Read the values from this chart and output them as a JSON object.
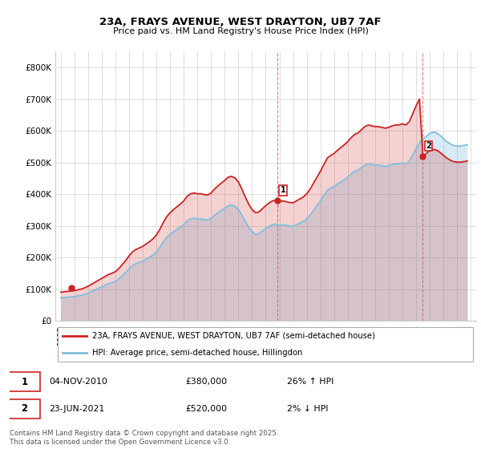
{
  "title": "23A, FRAYS AVENUE, WEST DRAYTON, UB7 7AF",
  "subtitle": "Price paid vs. HM Land Registry's House Price Index (HPI)",
  "legend_line1": "23A, FRAYS AVENUE, WEST DRAYTON, UB7 7AF (semi-detached house)",
  "legend_line2": "HPI: Average price, semi-detached house, Hillingdon",
  "footer": "Contains HM Land Registry data © Crown copyright and database right 2025.\nThis data is licensed under the Open Government Licence v3.0.",
  "annotation1_label": "1",
  "annotation1_date": "04-NOV-2010",
  "annotation1_price": "£380,000",
  "annotation1_hpi": "26% ↑ HPI",
  "annotation2_label": "2",
  "annotation2_date": "23-JUN-2021",
  "annotation2_price": "£520,000",
  "annotation2_hpi": "2% ↓ HPI",
  "hpi_color": "#7fbfdd",
  "price_color": "#cc2222",
  "vline_color": "#cc2222",
  "ylim": [
    0,
    850000
  ],
  "yticks": [
    0,
    100000,
    200000,
    300000,
    400000,
    500000,
    600000,
    700000,
    800000
  ],
  "ytick_labels": [
    "£0",
    "£100K",
    "£200K",
    "£300K",
    "£400K",
    "£500K",
    "£600K",
    "£700K",
    "£800K"
  ],
  "hpi_data_years": [
    1995.0,
    1995.25,
    1995.5,
    1995.75,
    1996.0,
    1996.25,
    1996.5,
    1996.75,
    1997.0,
    1997.25,
    1997.5,
    1997.75,
    1998.0,
    1998.25,
    1998.5,
    1998.75,
    1999.0,
    1999.25,
    1999.5,
    1999.75,
    2000.0,
    2000.25,
    2000.5,
    2000.75,
    2001.0,
    2001.25,
    2001.5,
    2001.75,
    2002.0,
    2002.25,
    2002.5,
    2002.75,
    2003.0,
    2003.25,
    2003.5,
    2003.75,
    2004.0,
    2004.25,
    2004.5,
    2004.75,
    2005.0,
    2005.25,
    2005.5,
    2005.75,
    2006.0,
    2006.25,
    2006.5,
    2006.75,
    2007.0,
    2007.25,
    2007.5,
    2007.75,
    2008.0,
    2008.25,
    2008.5,
    2008.75,
    2009.0,
    2009.25,
    2009.5,
    2009.75,
    2010.0,
    2010.25,
    2010.5,
    2010.75,
    2011.0,
    2011.25,
    2011.5,
    2011.75,
    2012.0,
    2012.25,
    2012.5,
    2012.75,
    2013.0,
    2013.25,
    2013.5,
    2013.75,
    2014.0,
    2014.25,
    2014.5,
    2014.75,
    2015.0,
    2015.25,
    2015.5,
    2015.75,
    2016.0,
    2016.25,
    2016.5,
    2016.75,
    2017.0,
    2017.25,
    2017.5,
    2017.75,
    2018.0,
    2018.25,
    2018.5,
    2018.75,
    2019.0,
    2019.25,
    2019.5,
    2019.75,
    2020.0,
    2020.25,
    2020.5,
    2020.75,
    2021.0,
    2021.25,
    2021.5,
    2021.75,
    2022.0,
    2022.25,
    2022.5,
    2022.75,
    2023.0,
    2023.25,
    2023.5,
    2023.75,
    2024.0,
    2024.25,
    2024.5,
    2024.75
  ],
  "hpi_data_values": [
    73000,
    74000,
    75000,
    76000,
    77000,
    79000,
    81000,
    84000,
    88000,
    93000,
    98000,
    103000,
    108000,
    113000,
    118000,
    121000,
    125000,
    133000,
    143000,
    153000,
    165000,
    175000,
    181000,
    185000,
    189000,
    195000,
    201000,
    208000,
    218000,
    232000,
    249000,
    264000,
    274000,
    282000,
    289000,
    296000,
    304000,
    316000,
    322000,
    324000,
    322000,
    322000,
    320000,
    319000,
    324000,
    334000,
    342000,
    349000,
    356000,
    364000,
    366000,
    362000,
    352000,
    334000,
    314000,
    296000,
    282000,
    274000,
    276000,
    284000,
    292000,
    299000,
    304000,
    306000,
    302000,
    304000,
    302000,
    300000,
    299000,
    304000,
    309000,
    314000,
    322000,
    334000,
    349000,
    364000,
    379000,
    396000,
    412000,
    419000,
    424000,
    432000,
    439000,
    446000,
    454000,
    464000,
    472000,
    476000,
    484000,
    492000,
    496000,
    494000,
    492000,
    492000,
    490000,
    488000,
    490000,
    494000,
    496000,
    496000,
    499000,
    496000,
    504000,
    524000,
    544000,
    562000,
    574000,
    582000,
    592000,
    596000,
    594000,
    586000,
    576000,
    566000,
    559000,
    554000,
    552000,
    552000,
    554000,
    556000
  ],
  "sale1_year": 2010.83,
  "sale1_price": 380000,
  "sale2_year": 2021.47,
  "sale2_price": 520000,
  "sale0_year": 1995.75,
  "sale0_price": 104000
}
